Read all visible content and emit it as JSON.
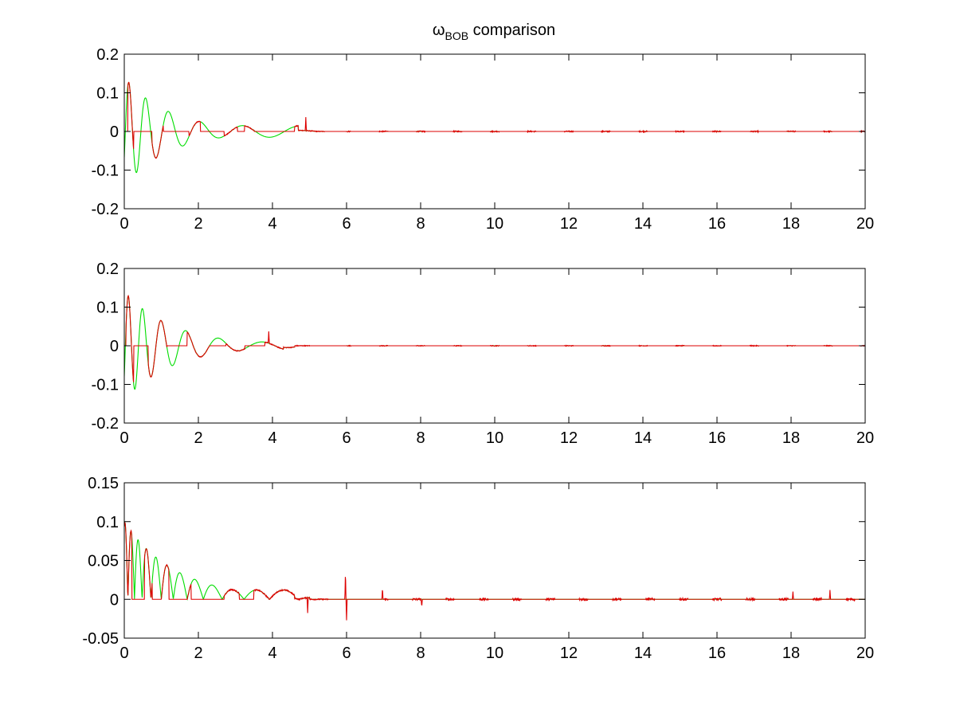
{
  "figure": {
    "title_main": "ω",
    "title_sub": "BOB",
    "title_rest": " comparison",
    "background": "#ffffff"
  },
  "chart_data": [
    {
      "type": "line",
      "xlim": [
        0,
        20
      ],
      "ylim": [
        -0.2,
        0.2
      ],
      "xticks": [
        0,
        2,
        4,
        6,
        8,
        10,
        12,
        14,
        16,
        18,
        20
      ],
      "xtick_labels": [
        "0",
        "2",
        "4",
        "6",
        "8",
        "10",
        "12",
        "14",
        "16",
        "18",
        "20"
      ],
      "yticks": [
        -0.2,
        -0.1,
        0,
        0.1,
        0.2
      ],
      "ytick_labels": [
        "-0.2",
        "-0.1",
        "0",
        "0.1",
        "0.2"
      ],
      "grid": false,
      "series": [
        {
          "color": "#00dd00",
          "model": {
            "kind": "damped",
            "A": 0.14,
            "tau": 1.2,
            "p0": 0.35,
            "growth": 0.31,
            "phase": -0.5,
            "floor": 0.015,
            "floor_until": 4.7,
            "cut": 5.2
          }
        },
        {
          "color": "#dd0000",
          "model": {
            "kind": "sampled",
            "A": 0.14,
            "tau": 1.2,
            "p0": 0.35,
            "growth": 0.31,
            "phase": -0.5,
            "floor": 0.015,
            "floor_until": 4.7,
            "cut": 5.2,
            "active": [
              [
                0.1,
                0.25
              ],
              [
                0.75,
                1.05
              ],
              [
                1.75,
                2.05
              ],
              [
                2.7,
                3.05
              ],
              [
                3.25,
                3.5
              ],
              [
                4.6,
                5.4
              ]
            ],
            "noise": 0.002,
            "spikes": [
              [
                4.9,
                0.035
              ]
            ],
            "bursts_from": 6,
            "burst_step": 1.0,
            "burst_amp": 0.003
          }
        }
      ]
    },
    {
      "type": "line",
      "xlim": [
        0,
        20
      ],
      "ylim": [
        -0.2,
        0.2
      ],
      "xticks": [
        0,
        2,
        4,
        6,
        8,
        10,
        12,
        14,
        16,
        18,
        20
      ],
      "xtick_labels": [
        "0",
        "2",
        "4",
        "6",
        "8",
        "10",
        "12",
        "14",
        "16",
        "18",
        "20"
      ],
      "yticks": [
        -0.2,
        -0.1,
        0,
        0.1,
        0.2
      ],
      "ytick_labels": [
        "-0.2",
        "-0.1",
        "0",
        "0.1",
        "0.2"
      ],
      "grid": false,
      "series": [
        {
          "color": "#00dd00",
          "model": {
            "kind": "damped",
            "A": 0.14,
            "tau": 1.3,
            "p0": 0.3,
            "growth": 0.28,
            "phase": -0.6,
            "floor": 0.01,
            "floor_until": 4.3,
            "cut": 4.6
          }
        },
        {
          "color": "#dd0000",
          "model": {
            "kind": "sampled",
            "A": 0.14,
            "tau": 1.3,
            "p0": 0.3,
            "growth": 0.28,
            "phase": -0.6,
            "floor": 0.01,
            "floor_until": 4.3,
            "cut": 4.6,
            "active": [
              [
                0.05,
                0.25
              ],
              [
                0.65,
                1.15
              ],
              [
                1.7,
                2.3
              ],
              [
                2.75,
                3.25
              ],
              [
                3.8,
                5.0
              ]
            ],
            "noise": 0.002,
            "spikes": [
              [
                3.9,
                0.03
              ]
            ],
            "bursts_from": 6,
            "burst_step": 1.0,
            "burst_amp": 0.002
          }
        }
      ]
    },
    {
      "type": "line",
      "xlim": [
        0,
        20
      ],
      "ylim": [
        -0.05,
        0.15
      ],
      "xticks": [
        0,
        2,
        4,
        6,
        8,
        10,
        12,
        14,
        16,
        18,
        20
      ],
      "xtick_labels": [
        "0",
        "2",
        "4",
        "6",
        "8",
        "10",
        "12",
        "14",
        "16",
        "18",
        "20"
      ],
      "yticks": [
        -0.05,
        0,
        0.05,
        0.1,
        0.15
      ],
      "ytick_labels": [
        "-0.05",
        "0",
        "0.05",
        "0.1",
        "0.15"
      ],
      "grid": false,
      "series": [
        {
          "color": "#00dd00",
          "model": {
            "kind": "rectified",
            "A": 0.1,
            "tau": 1.4,
            "p0": 0.3,
            "growth": 0.3,
            "phase": 1.2,
            "floor": 0.012,
            "floor_until": 4.6,
            "cut": 5.0
          }
        },
        {
          "color": "#dd0000",
          "model": {
            "kind": "rectified_sampled",
            "A": 0.1,
            "tau": 1.4,
            "p0": 0.3,
            "growth": 0.3,
            "phase": 1.2,
            "floor": 0.012,
            "floor_until": 4.6,
            "cut": 5.0,
            "active": [
              [
                0.0,
                0.2
              ],
              [
                0.55,
                0.75
              ],
              [
                1.0,
                1.2
              ],
              [
                1.7,
                1.8
              ],
              [
                2.7,
                3.1
              ],
              [
                3.5,
                5.5
              ]
            ],
            "noise": 0.0015,
            "spikes": [
              [
                4.95,
                -0.02
              ],
              [
                5.97,
                0.037
              ],
              [
                6.0,
                -0.027
              ],
              [
                6.97,
                0.015
              ],
              [
                8.03,
                -0.01
              ],
              [
                18.05,
                0.01
              ],
              [
                19.05,
                0.012
              ]
            ],
            "bursts_from": 7,
            "burst_step": 0.9,
            "burst_amp": 0.003
          }
        }
      ]
    }
  ]
}
